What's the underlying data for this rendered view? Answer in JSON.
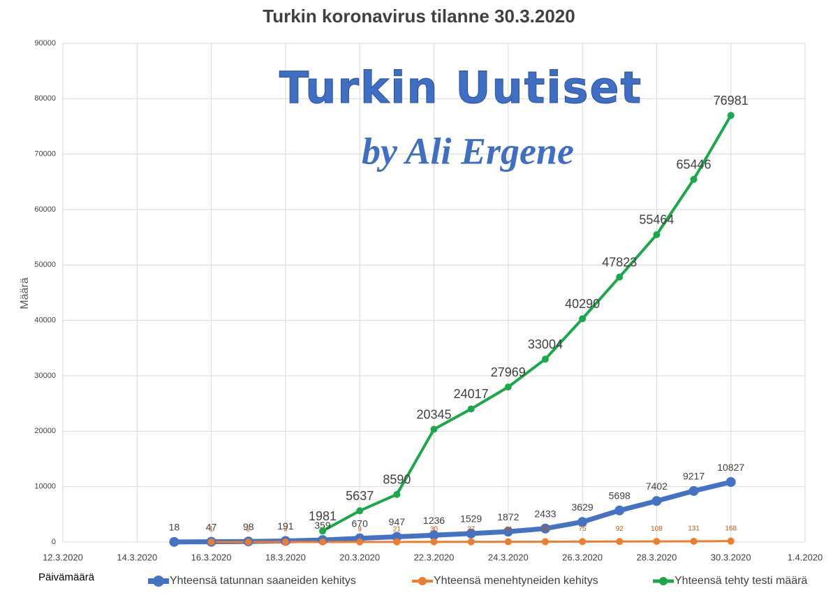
{
  "chart_data": {
    "type": "line",
    "title": "Turkin koronavirus tilanne 30.3.2020",
    "annotations": [
      "Turkin Uutiset",
      "by Ali Ergene"
    ],
    "x_label": "Päivämäärä",
    "y_label": "Määrä",
    "x": [
      "15.3.2020",
      "16.3.2020",
      "17.3.2020",
      "18.3.2020",
      "19.3.2020",
      "20.3.2020",
      "21.3.2020",
      "22.3.2020",
      "23.3.2020",
      "24.3.2020",
      "25.3.2020",
      "26.3.2020",
      "27.3.2020",
      "28.3.2020",
      "29.3.2020",
      "30.3.2020"
    ],
    "series": [
      {
        "name": "Yhteensä tatunnan saaneiden kehitys",
        "color": "#4472c4",
        "values": [
          18,
          47,
          98,
          191,
          359,
          670,
          947,
          1236,
          1529,
          1872,
          2433,
          3629,
          5698,
          7402,
          9217,
          10827
        ]
      },
      {
        "name": "Yhteensä menehtyneiden kehitys",
        "color": "#ed7d31",
        "values": [
          null,
          1,
          2,
          3,
          4,
          9,
          21,
          30,
          37,
          44,
          59,
          75,
          92,
          108,
          131,
          168
        ]
      },
      {
        "name": "Yhteensä tehty testi määrä",
        "color": "#1aa84a",
        "values": [
          null,
          null,
          null,
          null,
          1981,
          5637,
          8590,
          20345,
          24017,
          27969,
          33004,
          40290,
          47823,
          55464,
          65446,
          76981
        ]
      }
    ],
    "xlim": [
      "12.3.2020",
      "1.4.2020"
    ],
    "xticks": [
      "12.3.2020",
      "14.3.2020",
      "16.3.2020",
      "18.3.2020",
      "20.3.2020",
      "22.3.2020",
      "24.3.2020",
      "26.3.2020",
      "28.3.2020",
      "30.3.2020",
      "1.4.2020"
    ],
    "ylim": [
      0,
      90000
    ],
    "yticks": [
      0,
      10000,
      20000,
      30000,
      40000,
      50000,
      60000,
      70000,
      80000,
      90000
    ],
    "grid": true,
    "legend": "bottom"
  }
}
